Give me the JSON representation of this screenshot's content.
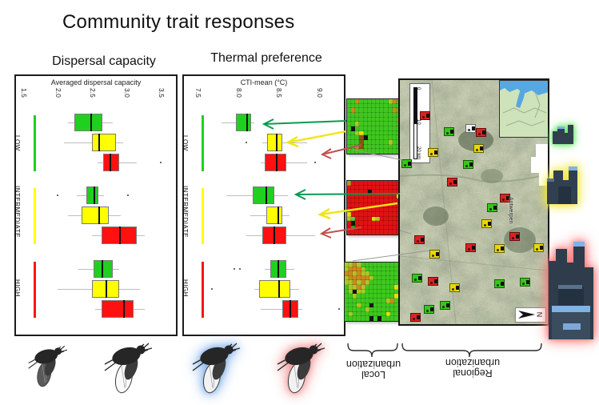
{
  "title": "Community trait responses",
  "colors": {
    "box_green": "#1fd01f",
    "box_yellow": "#ffff00",
    "box_red": "#ff1111",
    "whisker": "#bdbdbd",
    "arrow_green": "#0a9a50",
    "arrow_yellow": "#f0e614",
    "arrow_red": "#c0504d",
    "city_glow_low": "#6fe86f",
    "city_glow_intermediate": "#f2ea3a",
    "city_glow_high": "#ff7a7a",
    "insect_glow_cold": "#8ab6ea",
    "insect_glow_warm": "#f29a9a"
  },
  "chart_data": [
    {
      "type": "boxplot",
      "orientation": "horizontal",
      "title": "Dispersal capacity",
      "xlabel": "Averaged dispersal capacity",
      "ticks": [
        1.5,
        2.0,
        2.5,
        3.0,
        3.5
      ],
      "xlim": [
        1.4,
        3.72
      ],
      "grid": false,
      "groups": [
        {
          "label": "LOW",
          "color": "#1fd01f",
          "series": [
            {
              "name": "local-low",
              "color": "#1fd01f",
              "whislo": 2.15,
              "q1": 2.25,
              "med": 2.48,
              "q3": 2.65,
              "whishi": 2.8,
              "outliers": []
            },
            {
              "name": "local-intermediate",
              "color": "#ffff00",
              "whislo": 2.1,
              "q1": 2.5,
              "med": 2.6,
              "q3": 2.85,
              "whishi": 2.95,
              "outliers": []
            },
            {
              "name": "local-high",
              "color": "#ff1111",
              "whislo": 2.58,
              "q1": 2.66,
              "med": 2.76,
              "q3": 2.9,
              "whishi": 3.15,
              "outliers": [
                3.5
              ]
            }
          ]
        },
        {
          "label": "INTERMEDIATE",
          "color": "#ffff00",
          "series": [
            {
              "name": "local-low",
              "color": "#1fd01f",
              "whislo": 2.28,
              "q1": 2.42,
              "med": 2.53,
              "q3": 2.6,
              "whishi": 2.68,
              "outliers": [
                2.0,
                3.02
              ]
            },
            {
              "name": "local-intermediate",
              "color": "#ffff00",
              "whislo": 2.15,
              "q1": 2.35,
              "med": 2.6,
              "q3": 2.75,
              "whishi": 2.92,
              "outliers": []
            },
            {
              "name": "local-high",
              "color": "#ff1111",
              "whislo": 2.5,
              "q1": 2.64,
              "med": 2.9,
              "q3": 3.15,
              "whishi": 3.27,
              "outliers": []
            }
          ]
        },
        {
          "label": "HIGH",
          "color": "#ff1111",
          "series": [
            {
              "name": "local-low",
              "color": "#1fd01f",
              "whislo": 2.3,
              "q1": 2.52,
              "med": 2.64,
              "q3": 2.8,
              "whishi": 2.9,
              "outliers": []
            },
            {
              "name": "local-intermediate",
              "color": "#ffff00",
              "whislo": 2.0,
              "q1": 2.5,
              "med": 2.7,
              "q3": 2.9,
              "whishi": 3.2,
              "outliers": []
            },
            {
              "name": "local-high",
              "color": "#ff1111",
              "whislo": 2.55,
              "q1": 2.64,
              "med": 2.95,
              "q3": 3.1,
              "whishi": 3.27,
              "outliers": []
            }
          ]
        }
      ]
    },
    {
      "type": "boxplot",
      "orientation": "horizontal",
      "title": "Thermal preference",
      "xlabel": "CTI-mean (°C)",
      "ticks": [
        7.5,
        8.0,
        8.5,
        9.0
      ],
      "xlim": [
        7.33,
        9.31
      ],
      "grid": false,
      "groups": [
        {
          "label": "LOW",
          "color": "#1fd01f",
          "series": [
            {
              "name": "local-low",
              "color": "#1fd01f",
              "whislo": 7.8,
              "q1": 7.97,
              "med": 8.1,
              "q3": 8.16,
              "whishi": 8.2,
              "outliers": []
            },
            {
              "name": "local-intermediate",
              "color": "#ffff00",
              "whislo": 8.3,
              "q1": 8.36,
              "med": 8.47,
              "q3": 8.55,
              "whishi": 8.85,
              "outliers": [
                8.1
              ]
            },
            {
              "name": "local-high",
              "color": "#ff1111",
              "whislo": 8.28,
              "q1": 8.33,
              "med": 8.47,
              "q3": 8.6,
              "whishi": 8.85,
              "outliers": [
                8.95
              ]
            }
          ]
        },
        {
          "label": "INTERMEDIATE",
          "color": "#ffff00",
          "series": [
            {
              "name": "local-low",
              "color": "#1fd01f",
              "whislo": 7.85,
              "q1": 8.18,
              "med": 8.34,
              "q3": 8.45,
              "whishi": 8.62,
              "outliers": []
            },
            {
              "name": "local-intermediate",
              "color": "#ffff00",
              "whislo": 8.15,
              "q1": 8.35,
              "med": 8.49,
              "q3": 8.55,
              "whishi": 8.64,
              "outliers": []
            },
            {
              "name": "local-high",
              "color": "#ff1111",
              "whislo": 8.1,
              "q1": 8.3,
              "med": 8.44,
              "q3": 8.6,
              "whishi": 8.95,
              "outliers": []
            }
          ]
        },
        {
          "label": "HIGH",
          "color": "#ff1111",
          "series": [
            {
              "name": "local-low",
              "color": "#1fd01f",
              "whislo": 8.33,
              "q1": 8.4,
              "med": 8.49,
              "q3": 8.6,
              "whishi": 8.7,
              "outliers": [
                7.95,
                8.02
              ]
            },
            {
              "name": "local-intermediate",
              "color": "#ffff00",
              "whislo": 8.2,
              "q1": 8.26,
              "med": 8.5,
              "q3": 8.65,
              "whishi": 8.76,
              "outliers": [
                7.68
              ]
            },
            {
              "name": "local-high",
              "color": "#ff1111",
              "whislo": 8.28,
              "q1": 8.55,
              "med": 8.64,
              "q3": 8.75,
              "whishi": 8.8,
              "outliers": [
                9.25
              ]
            }
          ]
        }
      ]
    }
  ],
  "heatmaps": {
    "palette": {
      "G": "#3ec81e",
      "g": "#66c73c",
      "d": "#2ea214",
      "y": "#aac825",
      "Y": "#e6df00",
      "o": "#cc8a1c",
      "O": "#8a5410",
      "r": "#e01212",
      "R": "#b00d0d",
      "B": "#141414"
    },
    "panels": [
      {
        "name": "local-urbanization-low-raster",
        "grid": [
          "GGoGGGGGGGyoG",
          "GGGGGGGGGGGGG",
          "GoGGGGGGGGGoG",
          "GGGGGGGGGGGGG",
          "GGGGGGGGGGGGo",
          "GGyGGGGGGGGGG",
          "GBGGGGGGGGGGG",
          "GGyYGGGGGGGGG",
          "GGGOBGGGGGGGG",
          "GGGOGGGGGGyGG",
          "GGoOGGGGGGGGG",
          "GGGGGGGGGGGGG"
        ]
      },
      {
        "name": "local-urbanization-high-raster",
        "grid": [
          "orrrrrrrrrrrr",
          "rrrrrrrrrrrrr",
          "rrrrrBrrrrrrr",
          "rrrrrrrrrrrrY",
          "rrrrrrrrrrrrr",
          "rrrrrrrrrrrrr",
          "rrrrrrrrrrrrr",
          "Yrrrrrrrrrrrr",
          "ygrrrrYyrrrrr",
          "rBrrrrrrrrrrr",
          "rdrrrrrrrrrrr",
          "rrrrrrrrrrrrr"
        ]
      },
      {
        "name": "local-urbanization-intermediate-raster",
        "grid": [
          "yyoyGGGGGGGGG",
          "yoooyGGGGGGGG",
          "ooyoyyGGGGGGG",
          "yoooooyGGGGGG",
          "yyoyoyGGGGGGG",
          "GyyoyGGGGGGGY",
          "GyByyGGGGGGGG",
          "GGyGGGGGGGGGY",
          "GGGGGGGGGGyoG",
          "GGGyGGBGGGGGG",
          "GGGGGyGGGGGGG",
          "GyGGGGGGGGYGG",
          "GGGGGGBGBGGGG"
        ]
      }
    ]
  },
  "map": {
    "city_label": "Antwerpen",
    "north_label": "N",
    "scale_labels": [
      "0",
      "10",
      "20 km"
    ],
    "marker_colors": {
      "red": "#e02020",
      "green": "#35c818",
      "yellow": "#e8d800",
      "white": "#f0f0f0"
    },
    "markers": [
      {
        "x": 25,
        "y": 39,
        "c": "red"
      },
      {
        "x": 95,
        "y": 60,
        "c": "red"
      },
      {
        "x": 55,
        "y": 59,
        "c": "green"
      },
      {
        "x": 82,
        "y": 55,
        "c": "white"
      },
      {
        "x": 35,
        "y": 85,
        "c": "yellow"
      },
      {
        "x": 79,
        "y": 100,
        "c": "green"
      },
      {
        "x": 2,
        "y": 99,
        "c": "green"
      },
      {
        "x": 59,
        "y": 122,
        "c": "red"
      },
      {
        "x": 92,
        "y": 80,
        "c": "yellow"
      },
      {
        "x": 125,
        "y": 142,
        "c": "red"
      },
      {
        "x": 109,
        "y": 154,
        "c": "green"
      },
      {
        "x": 102,
        "y": 174,
        "c": "yellow"
      },
      {
        "x": 137,
        "y": 190,
        "c": "red"
      },
      {
        "x": 118,
        "y": 205,
        "c": "yellow"
      },
      {
        "x": 167,
        "y": 204,
        "c": "yellow"
      },
      {
        "x": 18,
        "y": 194,
        "c": "red"
      },
      {
        "x": 37,
        "y": 212,
        "c": "yellow"
      },
      {
        "x": 82,
        "y": 204,
        "c": "red"
      },
      {
        "x": 15,
        "y": 242,
        "c": "green"
      },
      {
        "x": 35,
        "y": 246,
        "c": "red"
      },
      {
        "x": 62,
        "y": 254,
        "c": "yellow"
      },
      {
        "x": 118,
        "y": 249,
        "c": "green"
      },
      {
        "x": 150,
        "y": 247,
        "c": "green"
      },
      {
        "x": 50,
        "y": 276,
        "c": "green"
      },
      {
        "x": 30,
        "y": 281,
        "c": "green"
      },
      {
        "x": 13,
        "y": 291,
        "c": "red"
      }
    ]
  },
  "captions": {
    "local_line1": "Local",
    "local_line2": "urbanization",
    "regional_line1": "Regional",
    "regional_line2": "urbanization"
  },
  "legend": {
    "cities": [
      {
        "name": "city-low-regional-urbanization",
        "glow": "#6fe86f"
      },
      {
        "name": "city-intermediate-regional-urbanization",
        "glow": "#f2ea3a"
      },
      {
        "name": "city-high-regional-urbanization",
        "glow": "#ff7a7a"
      }
    ],
    "insects": [
      {
        "name": "low-dispersal-insect"
      },
      {
        "name": "high-dispersal-insect"
      },
      {
        "name": "cold-adapted-insect",
        "glow": "#8ab6ea"
      },
      {
        "name": "warm-adapted-insect",
        "glow": "#f29a9a"
      }
    ]
  }
}
